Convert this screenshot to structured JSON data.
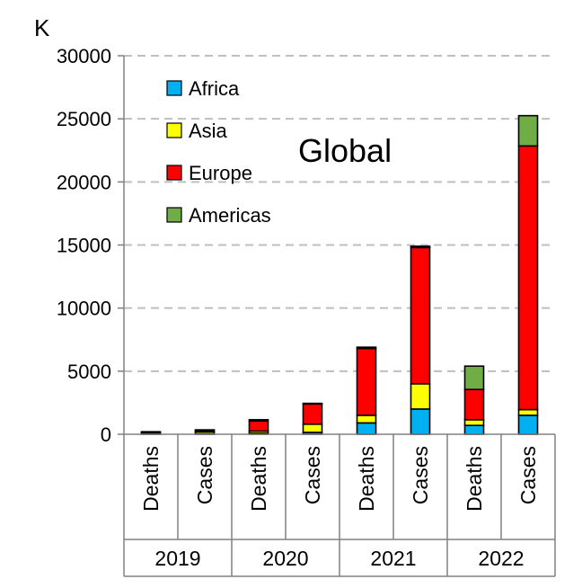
{
  "chart_data": {
    "type": "bar",
    "stacked": true,
    "title": "Global",
    "ylabel": "K",
    "ylim": [
      0,
      30000
    ],
    "yticks": [
      0,
      5000,
      10000,
      15000,
      20000,
      25000,
      30000
    ],
    "grid": true,
    "legend_position": "top-left",
    "groups": [
      "2019",
      "2020",
      "2021",
      "2022"
    ],
    "categories": [
      {
        "group": "2019",
        "label": "Deaths"
      },
      {
        "group": "2019",
        "label": "Cases"
      },
      {
        "group": "2020",
        "label": "Deaths"
      },
      {
        "group": "2020",
        "label": "Cases"
      },
      {
        "group": "2021",
        "label": "Deaths"
      },
      {
        "group": "2021",
        "label": "Cases"
      },
      {
        "group": "2022",
        "label": "Deaths"
      },
      {
        "group": "2022",
        "label": "Cases"
      }
    ],
    "series": [
      {
        "name": "Africa",
        "color": "#00B0F0",
        "values": [
          30,
          50,
          80,
          150,
          900,
          2000,
          700,
          1500
        ]
      },
      {
        "name": "Asia",
        "color": "#FFFF00",
        "values": [
          40,
          150,
          170,
          650,
          600,
          2000,
          450,
          450
        ]
      },
      {
        "name": "Europe",
        "color": "#FF0000",
        "values": [
          80,
          100,
          800,
          1600,
          5300,
          10800,
          2400,
          20900
        ]
      },
      {
        "name": "Americas",
        "color": "#70AD47",
        "values": [
          50,
          50,
          100,
          50,
          100,
          100,
          1850,
          2400
        ]
      }
    ]
  }
}
